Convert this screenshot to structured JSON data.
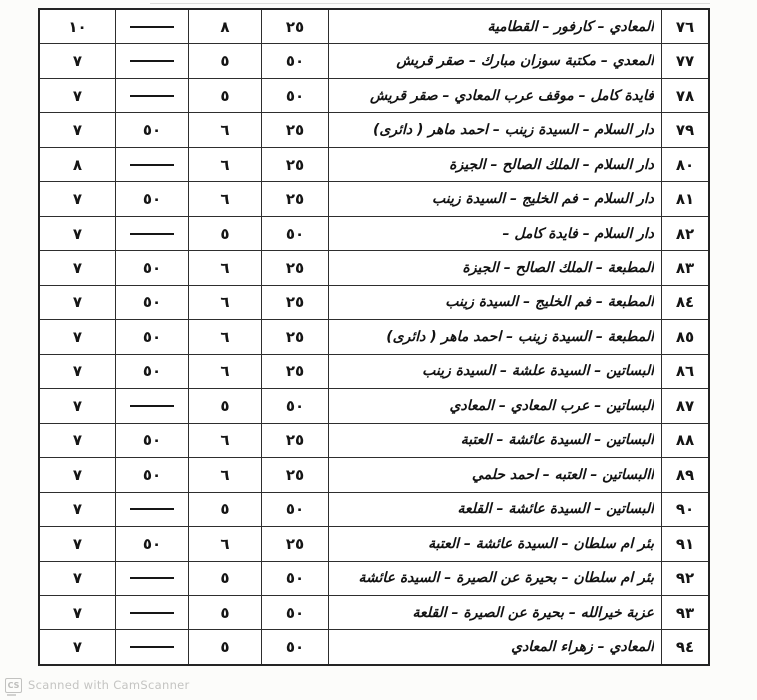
{
  "watermark": {
    "icon_label": "CS",
    "text": "Scanned with CamScanner",
    "color": "#c4c4c2"
  },
  "table": {
    "direction": "rtl",
    "border_color": "#2e2e2e",
    "rows": [
      {
        "no": "٧٦",
        "name": "المعادي – كارفور – القطامية",
        "v1": "٢٥",
        "v2": "٨",
        "v3": "—",
        "v4": "١٠"
      },
      {
        "no": "٧٧",
        "name": "المعدي – مكتبة سوزان مبارك – صقر قريش",
        "v1": "٥٠",
        "v2": "٥",
        "v3": "—",
        "v4": "٧"
      },
      {
        "no": "٧٨",
        "name": "فايدة كامل – موقف عرب المعادي – صقر قريش",
        "v1": "٥٠",
        "v2": "٥",
        "v3": "—",
        "v4": "٧"
      },
      {
        "no": "٧٩",
        "name": "دار السلام – السيدة زينب – احمد ماهر ( دائرى)",
        "v1": "٢٥",
        "v2": "٦",
        "v3": "٥٠",
        "v4": "٧"
      },
      {
        "no": "٨٠",
        "name": "دار السلام – الملك الصالح – الجيزة",
        "v1": "٢٥",
        "v2": "٦",
        "v3": "—",
        "v4": "٨"
      },
      {
        "no": "٨١",
        "name": "دار السلام – فم الخليج – السيدة زينب",
        "v1": "٢٥",
        "v2": "٦",
        "v3": "٥٠",
        "v4": "٧"
      },
      {
        "no": "٨٢",
        "name": "دار السلام – فايدة كامل –",
        "v1": "٥٠",
        "v2": "٥",
        "v3": "—",
        "v4": "٧"
      },
      {
        "no": "٨٣",
        "name": "المطبعة – الملك الصالح – الجيزة",
        "v1": "٢٥",
        "v2": "٦",
        "v3": "٥٠",
        "v4": "٧"
      },
      {
        "no": "٨٤",
        "name": "المطبعة – فم الخليج – السيدة زينب",
        "v1": "٢٥",
        "v2": "٦",
        "v3": "٥٠",
        "v4": "٧"
      },
      {
        "no": "٨٥",
        "name": "المطبعة – السيدة زينب – احمد ماهر ( دائرى)",
        "v1": "٢٥",
        "v2": "٦",
        "v3": "٥٠",
        "v4": "٧"
      },
      {
        "no": "٨٦",
        "name": "البساتين – السيدة علشة – السيدة زينب",
        "v1": "٢٥",
        "v2": "٦",
        "v3": "٥٠",
        "v4": "٧"
      },
      {
        "no": "٨٧",
        "name": "البساتين – عرب المعادي – المعادي",
        "v1": "٥٠",
        "v2": "٥",
        "v3": "—",
        "v4": "٧"
      },
      {
        "no": "٨٨",
        "name": "البساتين – السيدة عائشة – العتبة",
        "v1": "٢٥",
        "v2": "٦",
        "v3": "٥٠",
        "v4": "٧"
      },
      {
        "no": "٨٩",
        "name": "االبساتين – العتبه – احمد حلمي",
        "v1": "٢٥",
        "v2": "٦",
        "v3": "٥٠",
        "v4": "٧"
      },
      {
        "no": "٩٠",
        "name": "البساتين – السيدة عائشة – القلعة",
        "v1": "٥٠",
        "v2": "٥",
        "v3": "—",
        "v4": "٧"
      },
      {
        "no": "٩١",
        "name": "بئر ام سلطان – السيدة عائشة – العتبة",
        "v1": "٢٥",
        "v2": "٦",
        "v3": "٥٠",
        "v4": "٧"
      },
      {
        "no": "٩٢",
        "name": "بئر ام سلطان – بحيرة عن الصيرة – السيدة عائشة",
        "v1": "٥٠",
        "v2": "٥",
        "v3": "—",
        "v4": "٧"
      },
      {
        "no": "٩٣",
        "name": "عزبة خيرالله – بحيرة عن الصيرة – القلعة",
        "v1": "٥٠",
        "v2": "٥",
        "v3": "—",
        "v4": "٧"
      },
      {
        "no": "٩٤",
        "name": "المعادي – زهراء المعادي",
        "v1": "٥٠",
        "v2": "٥",
        "v3": "—",
        "v4": "٧"
      }
    ]
  }
}
